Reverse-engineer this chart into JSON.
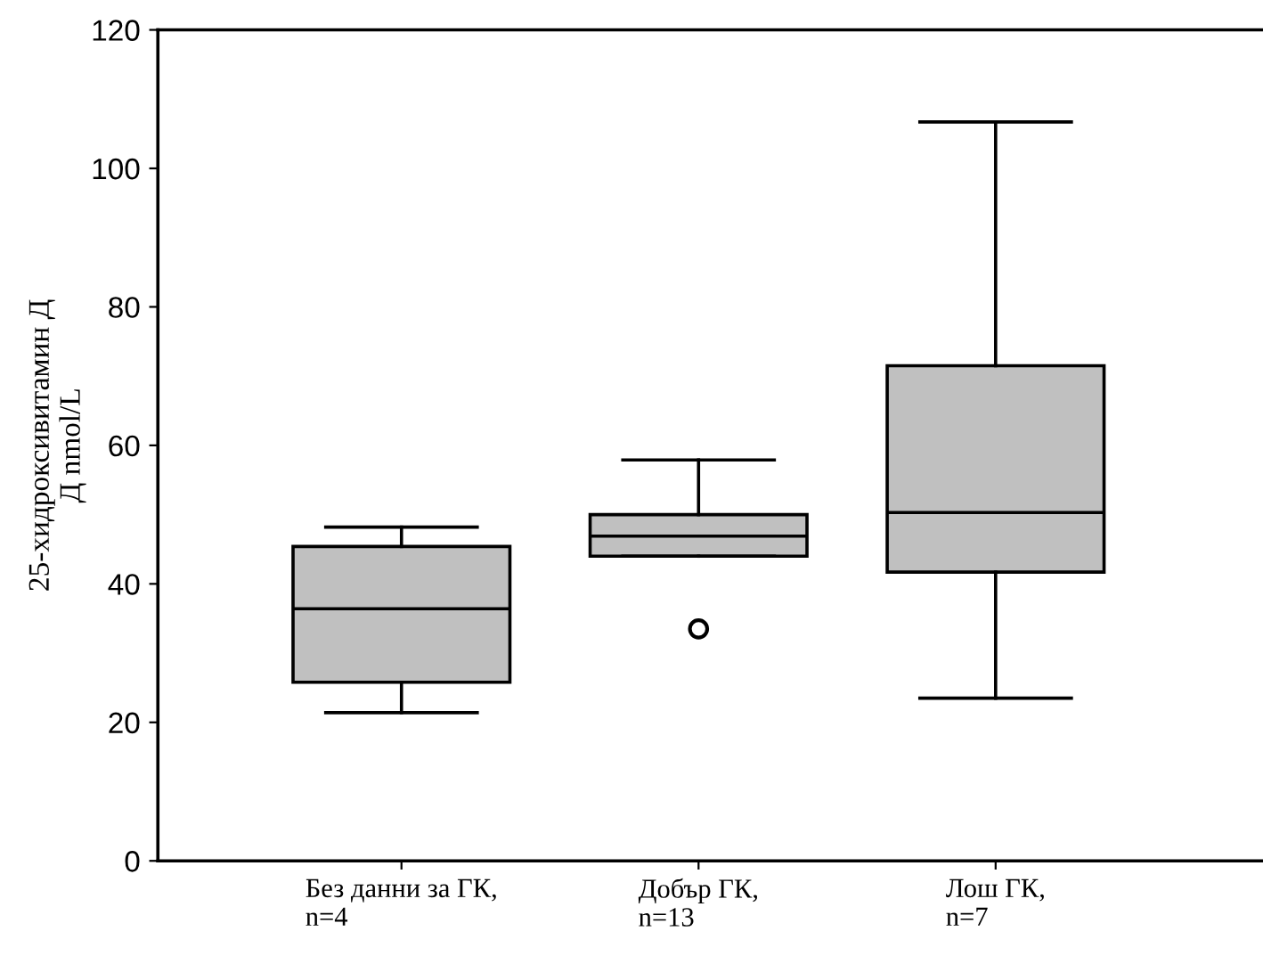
{
  "chart_data": {
    "type": "box",
    "ylabel": "25-хидроксивитамин Д\nД nmol/L",
    "categories": [
      "Без данни за ГК,\nn=4",
      "Добър ГК,\nn=13",
      "Лош ГК,\nn=7"
    ],
    "boxes": [
      {
        "low": 21.4,
        "q1": 25.8,
        "median": 36.4,
        "q3": 45.4,
        "high": 48.2
      },
      {
        "low": 44.0,
        "q1": 44.0,
        "median": 46.9,
        "q3": 50.0,
        "high": 57.9,
        "outliers": [
          33.5
        ]
      },
      {
        "low": 23.5,
        "q1": 41.7,
        "median": 50.3,
        "q3": 71.5,
        "high": 106.7
      }
    ],
    "color": "#c0c0c0",
    "ylim": [
      0,
      120
    ],
    "yticks": [
      0,
      20,
      40,
      60,
      80,
      100,
      120
    ],
    "grid": false,
    "legend": false
  }
}
